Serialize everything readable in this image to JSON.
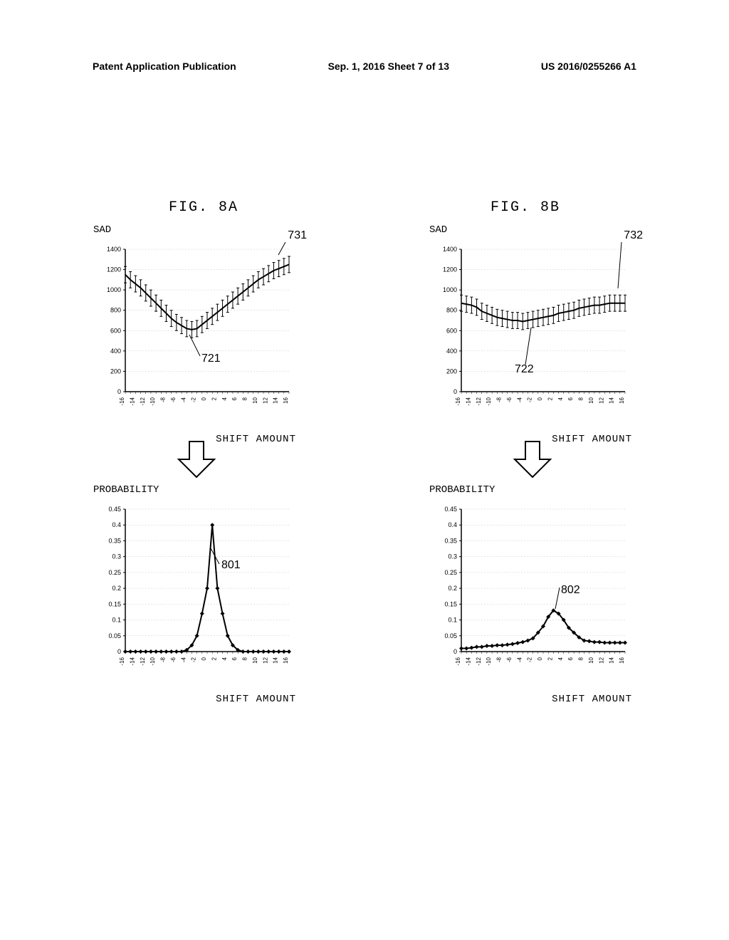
{
  "header": {
    "left": "Patent Application Publication",
    "center": "Sep. 1, 2016  Sheet 7 of 13",
    "right": "US 2016/0255266 A1"
  },
  "labels": {
    "fig8a": "FIG. 8A",
    "fig8b": "FIG. 8B"
  },
  "chart_sad_a": {
    "type": "line-with-errorbars",
    "ylabel": "SAD",
    "xlabel": "SHIFT AMOUNT",
    "ylim": [
      0,
      1400
    ],
    "ytick_step": 200,
    "xlim": [
      -16,
      16
    ],
    "xtick_step": 2,
    "values": [
      1150,
      1100,
      1060,
      1020,
      970,
      920,
      870,
      820,
      770,
      720,
      680,
      650,
      620,
      610,
      620,
      660,
      700,
      740,
      780,
      820,
      860,
      900,
      940,
      980,
      1020,
      1060,
      1100,
      1130,
      1160,
      1190,
      1210,
      1230,
      1250
    ],
    "errorbar": 80,
    "grid_color": "#cccccc",
    "line_color": "#000000",
    "callout_731": "731",
    "callout_721": "721"
  },
  "chart_sad_b": {
    "type": "line-with-errorbars",
    "ylabel": "SAD",
    "xlabel": "SHIFT AMOUNT",
    "ylim": [
      0,
      1400
    ],
    "ytick_step": 200,
    "xlim": [
      -16,
      16
    ],
    "xtick_step": 2,
    "values": [
      870,
      860,
      850,
      830,
      790,
      770,
      750,
      730,
      720,
      710,
      700,
      700,
      690,
      700,
      710,
      720,
      730,
      740,
      750,
      770,
      780,
      790,
      800,
      820,
      830,
      840,
      850,
      850,
      860,
      870,
      870,
      870,
      870
    ],
    "errorbar": 80,
    "grid_color": "#cccccc",
    "line_color": "#000000",
    "callout_732": "732",
    "callout_722": "722"
  },
  "chart_prob_a": {
    "type": "line-with-markers",
    "ylabel": "PROBABILITY",
    "xlabel": "SHIFT AMOUNT",
    "ylim": [
      0,
      0.45
    ],
    "ytick_step": 0.05,
    "xlim": [
      -16,
      16
    ],
    "xtick_step": 2,
    "values": [
      0,
      0,
      0,
      0,
      0,
      0,
      0,
      0,
      0,
      0,
      0,
      0,
      0.005,
      0.02,
      0.05,
      0.12,
      0.2,
      0.4,
      0.2,
      0.12,
      0.05,
      0.02,
      0.005,
      0,
      0,
      0,
      0,
      0,
      0,
      0,
      0,
      0,
      0
    ],
    "grid_color": "#cccccc",
    "line_color": "#000000",
    "marker": "diamond",
    "callout_801": "801"
  },
  "chart_prob_b": {
    "type": "line-with-markers",
    "ylabel": "PROBABILITY",
    "xlabel": "SHIFT AMOUNT",
    "ylim": [
      0,
      0.45
    ],
    "ytick_step": 0.05,
    "xlim": [
      -16,
      16
    ],
    "xtick_step": 2,
    "values": [
      0.01,
      0.01,
      0.012,
      0.015,
      0.015,
      0.018,
      0.018,
      0.02,
      0.02,
      0.022,
      0.024,
      0.027,
      0.03,
      0.035,
      0.042,
      0.06,
      0.08,
      0.11,
      0.13,
      0.12,
      0.1,
      0.075,
      0.06,
      0.045,
      0.035,
      0.033,
      0.03,
      0.03,
      0.028,
      0.028,
      0.028,
      0.028,
      0.028
    ],
    "grid_color": "#cccccc",
    "line_color": "#000000",
    "marker": "diamond",
    "callout_802": "802"
  },
  "colors": {
    "background": "#ffffff",
    "text": "#000000",
    "grid": "#cccccc",
    "line": "#000000"
  }
}
